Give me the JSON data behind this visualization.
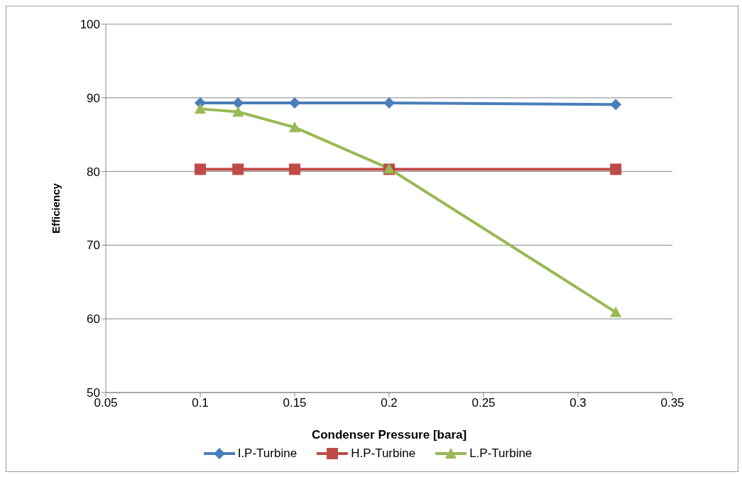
{
  "chart_data": {
    "type": "line",
    "xlabel": "Condenser Pressure [bara]",
    "ylabel": "Efficiency",
    "x": [
      0.1,
      0.12,
      0.15,
      0.2,
      0.32
    ],
    "series": [
      {
        "name": "I.P-Turbine",
        "color": "#4a7ebb",
        "marker": "diamond",
        "values": [
          89.3,
          89.3,
          89.3,
          89.3,
          89.1
        ]
      },
      {
        "name": "H.P-Turbine",
        "color": "#be4b48",
        "marker": "square",
        "values": [
          80.3,
          80.3,
          80.3,
          80.3,
          80.3
        ]
      },
      {
        "name": "L.P-Turbine",
        "color": "#98b954",
        "marker": "triangle",
        "values": [
          88.5,
          88.1,
          86.0,
          80.4,
          60.9
        ]
      }
    ],
    "xlim": [
      0.05,
      0.35
    ],
    "xticks": [
      0.05,
      0.1,
      0.15,
      0.2,
      0.25,
      0.3,
      0.35
    ],
    "ylim": [
      50,
      100
    ],
    "yticks": [
      50,
      60,
      70,
      80,
      90,
      100
    ],
    "grid": "y",
    "legend": "bottom",
    "line_style": "solid"
  }
}
